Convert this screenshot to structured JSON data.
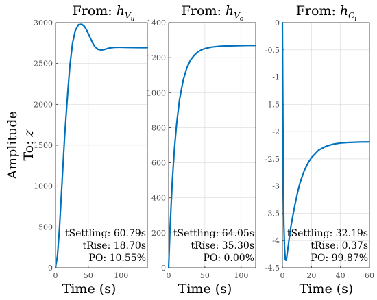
{
  "figure": {
    "ylabel_prefix": "Amplitude",
    "ylabel_to": "To: ",
    "ylabel_var": "z",
    "xlabel": "Time (s)"
  },
  "chart_data": [
    {
      "type": "line",
      "title_prefix": "From: ",
      "title_symbol": "h",
      "title_sub": "V",
      "title_subsub": "u",
      "xlabel": "Time (s)",
      "xlim": [
        0,
        140
      ],
      "ylim": [
        0,
        3000
      ],
      "xticks": [
        0,
        50,
        100
      ],
      "yticks": [
        0,
        500,
        1000,
        1500,
        2000,
        2500,
        3000
      ],
      "series": [
        {
          "x": [
            0,
            3,
            6,
            10,
            14,
            18.7,
            22,
            26,
            30,
            35,
            40,
            44,
            48,
            52,
            56,
            60,
            65,
            70,
            75,
            80,
            85,
            90,
            95,
            100,
            110,
            120,
            130,
            140
          ],
          "y": [
            0,
            150,
            480,
            1050,
            1620,
            2150,
            2480,
            2750,
            2900,
            2975,
            2980,
            2955,
            2900,
            2830,
            2760,
            2705,
            2672,
            2664,
            2672,
            2685,
            2693,
            2697,
            2698,
            2698,
            2696,
            2695,
            2694,
            2694
          ]
        }
      ],
      "annotations": [
        "tSettling:  60.79s",
        "tRise:  18.70s",
        "PO:  10.55%"
      ]
    },
    {
      "type": "line",
      "title_prefix": "From: ",
      "title_symbol": "h",
      "title_sub": "V",
      "title_subsub": "o",
      "xlabel": "Time (s)",
      "xlim": [
        0,
        120
      ],
      "ylim": [
        0,
        1400
      ],
      "xticks": [
        0,
        50,
        100
      ],
      "yticks": [
        0,
        200,
        400,
        600,
        800,
        1000,
        1200,
        1400
      ],
      "series": [
        {
          "x": [
            0,
            2,
            5,
            8,
            11,
            15,
            20,
            25,
            30,
            35,
            40,
            45,
            50,
            60,
            70,
            80,
            90,
            100,
            110,
            120
          ],
          "y": [
            0,
            230,
            490,
            680,
            820,
            960,
            1070,
            1140,
            1185,
            1212,
            1232,
            1244,
            1252,
            1261,
            1265,
            1267,
            1268,
            1269,
            1270,
            1270
          ]
        }
      ],
      "annotations": [
        "tSettling:  64.05s",
        "tRise:  35.30s",
        "PO:  0.00%"
      ]
    },
    {
      "type": "line",
      "title_prefix": "From: ",
      "title_symbol": "h",
      "title_sub": "C",
      "title_subsub": "i",
      "xlabel": "Time (s)",
      "xlim": [
        0,
        60
      ],
      "ylim": [
        -4.5,
        0
      ],
      "xticks": [
        0,
        20,
        40,
        60
      ],
      "yticks": [
        0,
        -0.5,
        -1,
        -1.5,
        -2,
        -2.5,
        -3,
        -3.5,
        -4,
        -4.5
      ],
      "series": [
        {
          "x": [
            0,
            0.3,
            0.6,
            1,
            1.5,
            2,
            2.5,
            3,
            4,
            5,
            6,
            8,
            10,
            12,
            15,
            18,
            20,
            25,
            30,
            35,
            40,
            45,
            50,
            55,
            60
          ],
          "y": [
            0,
            -1.4,
            -2.8,
            -3.7,
            -4.15,
            -4.35,
            -4.36,
            -4.3,
            -4.1,
            -3.9,
            -3.72,
            -3.43,
            -3.17,
            -2.95,
            -2.72,
            -2.56,
            -2.48,
            -2.34,
            -2.27,
            -2.23,
            -2.21,
            -2.2,
            -2.195,
            -2.19,
            -2.19
          ]
        }
      ],
      "annotations": [
        "tSettling:  32.19s",
        "tRise:  0.37s",
        "PO:  99.87%"
      ]
    }
  ],
  "colors": {
    "line": "#0072bd",
    "axis": "#262626",
    "grid": "#d9d9d9"
  }
}
